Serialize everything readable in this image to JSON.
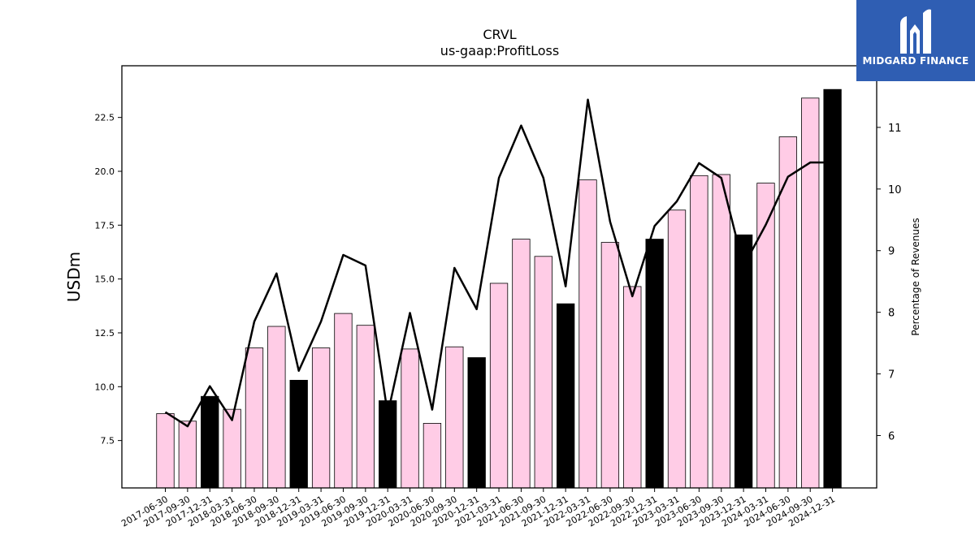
{
  "chart_data": {
    "type": "bar",
    "title": "CRVL",
    "subtitle": "us-gaap:ProfitLoss",
    "ylabel": "USDm",
    "y2label": "Percentage of Revenues",
    "ylim": [
      5.3,
      24.9
    ],
    "y2lim": [
      5.15,
      12.0
    ],
    "yticks": [
      "7.5",
      "10.0",
      "12.5",
      "15.0",
      "17.5",
      "20.0",
      "22.5"
    ],
    "y2ticks": [
      "6",
      "7",
      "8",
      "9",
      "10",
      "11"
    ],
    "categories": [
      "2017-06-30",
      "2017-09-30",
      "2017-12-31",
      "2018-03-31",
      "2018-06-30",
      "2018-09-30",
      "2018-12-31",
      "2019-03-31",
      "2019-06-30",
      "2019-09-30",
      "2019-12-31",
      "2020-03-31",
      "2020-06-30",
      "2020-09-30",
      "2020-12-31",
      "2021-03-31",
      "2021-06-30",
      "2021-09-30",
      "2021-12-31",
      "2022-03-31",
      "2022-06-30",
      "2022-09-30",
      "2022-12-31",
      "2023-03-31",
      "2023-06-30",
      "2023-09-30",
      "2023-12-31",
      "2024-03-31",
      "2024-06-30",
      "2024-09-30",
      "2024-12-31"
    ],
    "series": [
      {
        "type": "bar",
        "values": [
          8.75,
          8.4,
          9.55,
          8.95,
          11.8,
          12.8,
          10.3,
          11.8,
          13.4,
          12.85,
          9.35,
          11.75,
          8.3,
          11.85,
          11.35,
          14.8,
          16.85,
          16.05,
          13.85,
          19.6,
          16.7,
          14.65,
          16.85,
          18.2,
          19.8,
          19.85,
          17.05,
          19.45,
          21.6,
          23.4,
          23.8
        ],
        "fourth_quarter": [
          false,
          false,
          true,
          false,
          false,
          false,
          true,
          false,
          false,
          false,
          true,
          false,
          false,
          false,
          true,
          false,
          false,
          false,
          true,
          false,
          false,
          false,
          true,
          false,
          false,
          false,
          true,
          false,
          false,
          false,
          true
        ]
      },
      {
        "type": "line",
        "axis": "right",
        "values": [
          6.38,
          6.15,
          6.8,
          6.25,
          7.85,
          8.63,
          7.05,
          7.85,
          8.93,
          8.76,
          6.35,
          7.99,
          6.42,
          8.72,
          8.05,
          10.18,
          11.03,
          10.18,
          8.42,
          11.45,
          9.47,
          8.26,
          9.4,
          9.8,
          10.42,
          10.18,
          8.75,
          9.42,
          10.2,
          10.43,
          10.43
        ]
      }
    ],
    "colors": {
      "bar": "#ffcce6",
      "bar_q4": "#000000",
      "line": "#000000"
    }
  },
  "logo": {
    "text": "MIDGARD FINANCE"
  }
}
